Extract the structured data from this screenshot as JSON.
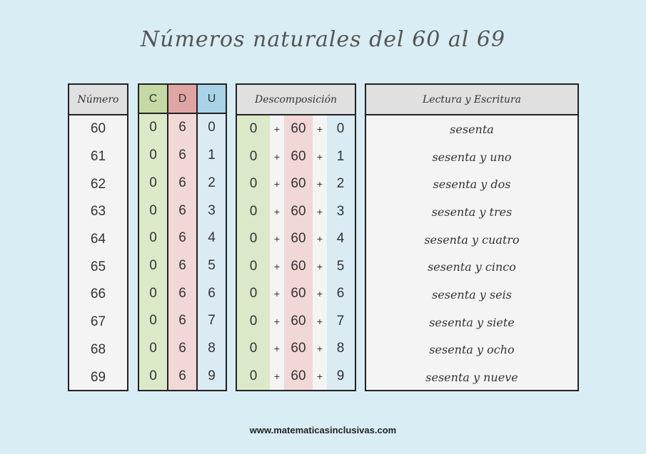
{
  "title": "Números naturales del 60 al 69",
  "headers": {
    "numero": "Número",
    "c": "C",
    "d": "D",
    "u": "U",
    "descomposicion": "Descomposición",
    "lectura": "Lectura y Escritura"
  },
  "rows": [
    {
      "numero": "60",
      "c": "0",
      "d": "6",
      "u": "0",
      "dc": "0",
      "dd": "60",
      "du": "0",
      "lectura": "sesenta"
    },
    {
      "numero": "61",
      "c": "0",
      "d": "6",
      "u": "1",
      "dc": "0",
      "dd": "60",
      "du": "1",
      "lectura": "sesenta y uno"
    },
    {
      "numero": "62",
      "c": "0",
      "d": "6",
      "u": "2",
      "dc": "0",
      "dd": "60",
      "du": "2",
      "lectura": "sesenta y dos"
    },
    {
      "numero": "63",
      "c": "0",
      "d": "6",
      "u": "3",
      "dc": "0",
      "dd": "60",
      "du": "3",
      "lectura": "sesenta y tres"
    },
    {
      "numero": "64",
      "c": "0",
      "d": "6",
      "u": "4",
      "dc": "0",
      "dd": "60",
      "du": "4",
      "lectura": "sesenta y cuatro"
    },
    {
      "numero": "65",
      "c": "0",
      "d": "6",
      "u": "5",
      "dc": "0",
      "dd": "60",
      "du": "5",
      "lectura": "sesenta y cinco"
    },
    {
      "numero": "66",
      "c": "0",
      "d": "6",
      "u": "6",
      "dc": "0",
      "dd": "60",
      "du": "6",
      "lectura": "sesenta y seis"
    },
    {
      "numero": "67",
      "c": "0",
      "d": "6",
      "u": "7",
      "dc": "0",
      "dd": "60",
      "du": "7",
      "lectura": "sesenta y siete"
    },
    {
      "numero": "68",
      "c": "0",
      "d": "6",
      "u": "8",
      "dc": "0",
      "dd": "60",
      "du": "8",
      "lectura": "sesenta y ocho"
    },
    {
      "numero": "69",
      "c": "0",
      "d": "6",
      "u": "9",
      "dc": "0",
      "dd": "60",
      "du": "9",
      "lectura": "sesenta y nueve"
    }
  ],
  "plus_sign": "+",
  "footer": "www.matematicasinclusivas.com",
  "colors": {
    "background": "#d9edf5",
    "centenas": "#dce9c9",
    "decenas": "#f2d7d7",
    "unidades": "#daebf3"
  }
}
